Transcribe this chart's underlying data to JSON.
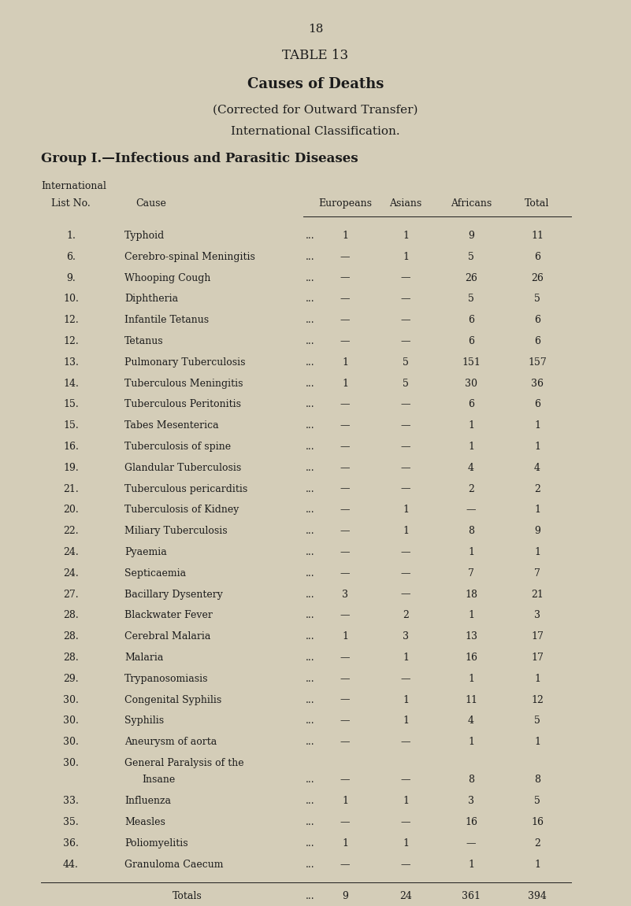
{
  "page_number": "18",
  "table_title": "TABLE 13",
  "subtitle1": "Causes of Deaths",
  "subtitle2": "(Corrected for Outward Transfer)",
  "subtitle3": "International Classification.",
  "group_title": "Group I.—Infectious and Parasitic Diseases",
  "col_header_row1": "International",
  "col_header_row2": "List No.",
  "col_header_cause": "Cause",
  "col_headers": [
    "Europeans",
    "Asians",
    "Africans",
    "Total"
  ],
  "rows": [
    {
      "num": "1.",
      "cause": "Typhoid",
      "eu": "1",
      "as": "1",
      "af": "9",
      "tot": "11"
    },
    {
      "num": "6.",
      "cause": "Cerebro-spinal Meningitis",
      "eu": "—",
      "as": "1",
      "af": "5",
      "tot": "6"
    },
    {
      "num": "9.",
      "cause": "Whooping Cough",
      "eu": "—",
      "as": "—",
      "af": "26",
      "tot": "26"
    },
    {
      "num": "10.",
      "cause": "Diphtheria",
      "eu": "—",
      "as": "—",
      "af": "5",
      "tot": "5"
    },
    {
      "num": "12.",
      "cause": "Infantile Tetanus",
      "eu": "—",
      "as": "—",
      "af": "6",
      "tot": "6"
    },
    {
      "num": "12.",
      "cause": "Tetanus",
      "eu": "—",
      "as": "—",
      "af": "6",
      "tot": "6"
    },
    {
      "num": "13.",
      "cause": "Pulmonary Tuberculosis",
      "eu": "1",
      "as": "5",
      "af": "151",
      "tot": "157"
    },
    {
      "num": "14.",
      "cause": "Tuberculous Meningitis",
      "eu": "1",
      "as": "5",
      "af": "30",
      "tot": "36"
    },
    {
      "num": "15.",
      "cause": "Tuberculous Peritonitis",
      "eu": "—",
      "as": "—",
      "af": "6",
      "tot": "6"
    },
    {
      "num": "15.",
      "cause": "Tabes Mesenterica",
      "eu": "—",
      "as": "—",
      "af": "1",
      "tot": "1"
    },
    {
      "num": "16.",
      "cause": "Tuberculosis of spine",
      "eu": "—",
      "as": "—",
      "af": "1",
      "tot": "1"
    },
    {
      "num": "19.",
      "cause": "Glandular Tuberculosis",
      "eu": "—",
      "as": "—",
      "af": "4",
      "tot": "4"
    },
    {
      "num": "21.",
      "cause": "Tuberculous pericarditis",
      "eu": "—",
      "as": "—",
      "af": "2",
      "tot": "2"
    },
    {
      "num": "20.",
      "cause": "Tuberculosis of Kidney",
      "eu": "—",
      "as": "1",
      "af": "—",
      "tot": "1"
    },
    {
      "num": "22.",
      "cause": "Miliary Tuberculosis",
      "eu": "—",
      "as": "1",
      "af": "8",
      "tot": "9"
    },
    {
      "num": "24.",
      "cause": "Pyaemia",
      "eu": "—",
      "as": "—",
      "af": "1",
      "tot": "1"
    },
    {
      "num": "24.",
      "cause": "Septicaemia",
      "eu": "—",
      "as": "—",
      "af": "7",
      "tot": "7"
    },
    {
      "num": "27.",
      "cause": "Bacillary Dysentery",
      "eu": "3",
      "as": "—",
      "af": "18",
      "tot": "21"
    },
    {
      "num": "28.",
      "cause": "Blackwater Fever",
      "eu": "—",
      "as": "2",
      "af": "1",
      "tot": "3"
    },
    {
      "num": "28.",
      "cause": "Cerebral Malaria",
      "eu": "1",
      "as": "3",
      "af": "13",
      "tot": "17"
    },
    {
      "num": "28.",
      "cause": "Malaria",
      "eu": "—",
      "as": "1",
      "af": "16",
      "tot": "17"
    },
    {
      "num": "29.",
      "cause": "Trypanosomiasis",
      "eu": "—",
      "as": "—",
      "af": "1",
      "tot": "1"
    },
    {
      "num": "30.",
      "cause": "Congenital Syphilis",
      "eu": "—",
      "as": "1",
      "af": "11",
      "tot": "12"
    },
    {
      "num": "30.",
      "cause": "Syphilis",
      "eu": "—",
      "as": "1",
      "af": "4",
      "tot": "5"
    },
    {
      "num": "30.",
      "cause": "Aneurysm of aorta",
      "eu": "—",
      "as": "—",
      "af": "1",
      "tot": "1"
    },
    {
      "num": "30.",
      "cause": "General Paralysis of the",
      "cause2": "Insane",
      "eu": "—",
      "as": "—",
      "af": "8",
      "tot": "8"
    },
    {
      "num": "33.",
      "cause": "Influenza",
      "eu": "1",
      "as": "1",
      "af": "3",
      "tot": "5"
    },
    {
      "num": "35.",
      "cause": "Measles",
      "eu": "—",
      "as": "—",
      "af": "16",
      "tot": "16"
    },
    {
      "num": "36.",
      "cause": "Poliomyelitis",
      "eu": "1",
      "as": "1",
      "af": "—",
      "tot": "2"
    },
    {
      "num": "44.",
      "cause": "Granuloma Caecum",
      "eu": "—",
      "as": "—",
      "af": "1",
      "tot": "1"
    }
  ],
  "totals": {
    "label": "Totals",
    "eu": "9",
    "as": "24",
    "af": "361",
    "tot": "394"
  },
  "bg_color": "#d4cdb8",
  "text_color": "#1c1c1c",
  "dots": "..."
}
